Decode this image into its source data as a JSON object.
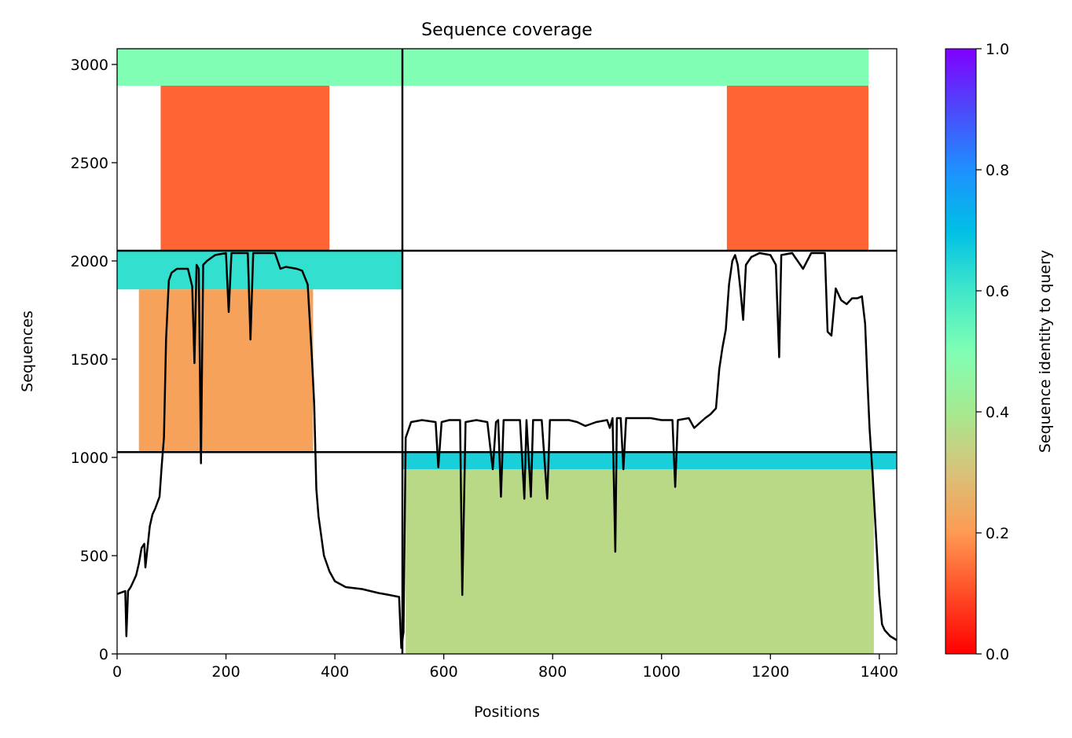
{
  "chart_data": {
    "type": "heatmap",
    "title": "Sequence coverage",
    "xlabel": "Positions",
    "ylabel": "Sequences",
    "xlim": [
      0,
      1432
    ],
    "ylim": [
      0,
      3080
    ],
    "x_ticks": [
      0,
      200,
      400,
      600,
      800,
      1000,
      1200,
      1400
    ],
    "y_ticks": [
      0,
      500,
      1000,
      1500,
      2000,
      2500,
      3000
    ],
    "colorbar": {
      "label": "Sequence identity to query",
      "range": [
        0,
        1
      ],
      "ticks": [
        "0.0",
        "0.2",
        "0.4",
        "0.6",
        "0.8",
        "1.0"
      ],
      "colormap": "rainbow_r"
    },
    "boundaries": {
      "x": [
        524
      ],
      "y": [
        1027,
        2052
      ]
    },
    "blocks": [
      {
        "x": [
          0,
          524
        ],
        "y": [
          2892,
          3080
        ],
        "identity": 0.5
      },
      {
        "x": [
          80,
          390
        ],
        "y": [
          2052,
          2892
        ],
        "identity": 0.13
      },
      {
        "x": [
          524,
          1380
        ],
        "y": [
          2892,
          3080
        ],
        "identity": 0.5
      },
      {
        "x": [
          1120,
          1380
        ],
        "y": [
          2052,
          2892
        ],
        "identity": 0.13
      },
      {
        "x": [
          0,
          524
        ],
        "y": [
          1855,
          2052
        ],
        "identity": 0.62
      },
      {
        "x": [
          40,
          360
        ],
        "y": [
          1027,
          1855
        ],
        "identity": 0.22
      },
      {
        "x": [
          524,
          1432
        ],
        "y": [
          940,
          1027
        ],
        "identity": 0.66
      },
      {
        "x": [
          530,
          1390
        ],
        "y": [
          0,
          940
        ],
        "identity": 0.36
      }
    ],
    "coverage_line": [
      [
        0,
        305
      ],
      [
        10,
        315
      ],
      [
        15,
        320
      ],
      [
        17,
        90
      ],
      [
        20,
        320
      ],
      [
        25,
        340
      ],
      [
        30,
        370
      ],
      [
        35,
        400
      ],
      [
        40,
        460
      ],
      [
        45,
        540
      ],
      [
        50,
        560
      ],
      [
        52,
        440
      ],
      [
        60,
        650
      ],
      [
        65,
        710
      ],
      [
        70,
        740
      ],
      [
        78,
        800
      ],
      [
        82,
        960
      ],
      [
        86,
        1100
      ],
      [
        90,
        1600
      ],
      [
        95,
        1900
      ],
      [
        100,
        1940
      ],
      [
        110,
        1960
      ],
      [
        120,
        1960
      ],
      [
        130,
        1960
      ],
      [
        138,
        1870
      ],
      [
        142,
        1480
      ],
      [
        146,
        1980
      ],
      [
        150,
        1960
      ],
      [
        154,
        970
      ],
      [
        158,
        1980
      ],
      [
        165,
        2000
      ],
      [
        180,
        2030
      ],
      [
        200,
        2040
      ],
      [
        205,
        1740
      ],
      [
        210,
        2040
      ],
      [
        230,
        2040
      ],
      [
        240,
        2040
      ],
      [
        245,
        1600
      ],
      [
        250,
        2040
      ],
      [
        270,
        2040
      ],
      [
        290,
        2040
      ],
      [
        300,
        1960
      ],
      [
        310,
        1970
      ],
      [
        330,
        1960
      ],
      [
        340,
        1950
      ],
      [
        350,
        1880
      ],
      [
        358,
        1500
      ],
      [
        362,
        1270
      ],
      [
        366,
        840
      ],
      [
        370,
        700
      ],
      [
        380,
        500
      ],
      [
        390,
        420
      ],
      [
        400,
        370
      ],
      [
        420,
        340
      ],
      [
        450,
        330
      ],
      [
        480,
        310
      ],
      [
        500,
        300
      ],
      [
        518,
        290
      ],
      [
        522,
        30
      ],
      [
        526,
        110
      ],
      [
        530,
        1100
      ],
      [
        540,
        1180
      ],
      [
        560,
        1190
      ],
      [
        585,
        1180
      ],
      [
        590,
        950
      ],
      [
        596,
        1180
      ],
      [
        610,
        1190
      ],
      [
        630,
        1190
      ],
      [
        634,
        300
      ],
      [
        640,
        1180
      ],
      [
        660,
        1190
      ],
      [
        680,
        1180
      ],
      [
        690,
        940
      ],
      [
        696,
        1180
      ],
      [
        700,
        1190
      ],
      [
        705,
        800
      ],
      [
        710,
        1190
      ],
      [
        740,
        1190
      ],
      [
        748,
        790
      ],
      [
        752,
        1190
      ],
      [
        760,
        800
      ],
      [
        764,
        1190
      ],
      [
        780,
        1190
      ],
      [
        790,
        790
      ],
      [
        795,
        1190
      ],
      [
        830,
        1190
      ],
      [
        845,
        1180
      ],
      [
        860,
        1160
      ],
      [
        880,
        1180
      ],
      [
        900,
        1190
      ],
      [
        905,
        1150
      ],
      [
        910,
        1200
      ],
      [
        915,
        520
      ],
      [
        918,
        1200
      ],
      [
        925,
        1200
      ],
      [
        930,
        940
      ],
      [
        935,
        1200
      ],
      [
        960,
        1200
      ],
      [
        980,
        1200
      ],
      [
        1000,
        1190
      ],
      [
        1020,
        1190
      ],
      [
        1025,
        850
      ],
      [
        1030,
        1190
      ],
      [
        1050,
        1200
      ],
      [
        1060,
        1150
      ],
      [
        1080,
        1200
      ],
      [
        1090,
        1220
      ],
      [
        1100,
        1250
      ],
      [
        1106,
        1450
      ],
      [
        1112,
        1560
      ],
      [
        1118,
        1650
      ],
      [
        1124,
        1880
      ],
      [
        1130,
        2000
      ],
      [
        1135,
        2030
      ],
      [
        1140,
        1980
      ],
      [
        1145,
        1850
      ],
      [
        1150,
        1700
      ],
      [
        1155,
        1980
      ],
      [
        1165,
        2020
      ],
      [
        1180,
        2040
      ],
      [
        1200,
        2030
      ],
      [
        1210,
        1980
      ],
      [
        1216,
        1510
      ],
      [
        1220,
        2030
      ],
      [
        1240,
        2040
      ],
      [
        1260,
        1960
      ],
      [
        1275,
        2040
      ],
      [
        1300,
        2040
      ],
      [
        1305,
        1640
      ],
      [
        1312,
        1620
      ],
      [
        1320,
        1860
      ],
      [
        1330,
        1800
      ],
      [
        1340,
        1780
      ],
      [
        1350,
        1810
      ],
      [
        1360,
        1810
      ],
      [
        1368,
        1820
      ],
      [
        1374,
        1680
      ],
      [
        1378,
        1400
      ],
      [
        1382,
        1150
      ],
      [
        1388,
        900
      ],
      [
        1394,
        600
      ],
      [
        1400,
        300
      ],
      [
        1405,
        150
      ],
      [
        1410,
        120
      ],
      [
        1420,
        90
      ],
      [
        1432,
        70
      ]
    ]
  }
}
